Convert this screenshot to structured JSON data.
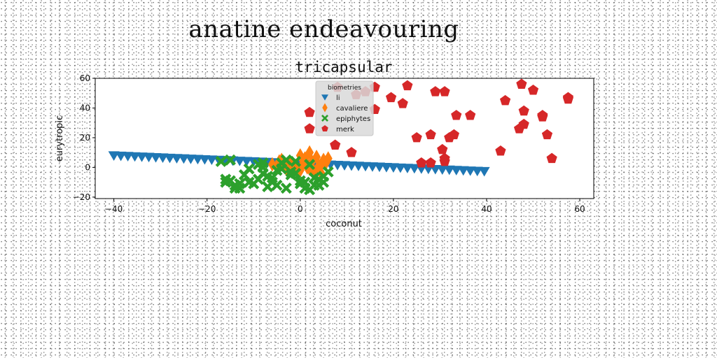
{
  "figure": {
    "suptitle": "anatine endeavouring"
  },
  "chart_data": {
    "type": "scatter",
    "title": "tricapsular",
    "xlabel": "coconut",
    "ylabel": "eurytropic",
    "xlim": [
      -44,
      63
    ],
    "ylim": [
      -21,
      60
    ],
    "xticks": [
      -40,
      -20,
      0,
      20,
      40,
      60
    ],
    "yticks": [
      -20,
      0,
      20,
      40,
      60
    ],
    "xtick_labels": [
      "−40",
      "−20",
      "0",
      "20",
      "40",
      "60"
    ],
    "ytick_labels": [
      "−20",
      "0",
      "20",
      "40",
      "60"
    ],
    "grid": false,
    "legend": {
      "title": "biometries",
      "placement": "top-center"
    },
    "series": [
      {
        "name": "li",
        "marker": "triangle-down",
        "color": "#1f77b4",
        "x": [
          -40,
          -38.5,
          -37,
          -35.5,
          -34,
          -32.5,
          -31,
          -29.5,
          -28,
          -26.5,
          -25,
          -23.5,
          -22,
          -20.5,
          -19,
          -17.5,
          -16,
          -14.5,
          -13,
          -11.5,
          -10,
          -8.5,
          -7,
          -5.5,
          -4,
          -2.5,
          -1,
          0.5,
          2,
          3.5,
          5,
          6.5,
          8,
          9.5,
          11,
          12.5,
          14,
          15.5,
          17,
          18.5,
          20,
          21.5,
          23,
          24.5,
          26,
          27.5,
          29,
          30.5,
          32,
          33.5,
          35,
          36.5,
          38,
          39.5
        ],
        "y": [
          8,
          7.8,
          7.6,
          7.4,
          7.2,
          7,
          6.8,
          6.6,
          6.4,
          6.2,
          6,
          5.8,
          5.6,
          5.4,
          5.2,
          5,
          4.8,
          4.6,
          4.4,
          4.2,
          4,
          3.8,
          3.6,
          3.4,
          3.2,
          3,
          2.8,
          2.6,
          2.4,
          2.2,
          2,
          1.8,
          1.6,
          1.4,
          1.2,
          1,
          0.8,
          0.6,
          0.4,
          0.2,
          0,
          -0.2,
          -0.4,
          -0.6,
          -0.8,
          -1,
          -1.2,
          -1.4,
          -1.6,
          -1.8,
          -2,
          -2.2,
          -2.4,
          -2.6
        ]
      },
      {
        "name": "cavaliere",
        "marker": "diamond",
        "color": "#ff7f0e",
        "x": [
          -6,
          -5,
          -4,
          -3,
          -2,
          -1,
          0,
          0.5,
          1,
          1.5,
          2,
          2.5,
          3,
          3.5,
          4,
          4.5,
          5,
          5.5,
          6,
          -4.5,
          -1.5,
          0,
          2,
          4.5,
          1
        ],
        "y": [
          2,
          0,
          5,
          -1,
          3,
          1,
          -2,
          2,
          6,
          0,
          10,
          4,
          -3,
          7,
          1,
          -4,
          5,
          3,
          6,
          4,
          -2,
          8,
          -1,
          2,
          3
        ]
      },
      {
        "name": "epiphytes",
        "marker": "x",
        "color": "#2ca02c",
        "x": [
          -17,
          -16,
          -15,
          -14,
          -13,
          -12,
          -11,
          -10,
          -9,
          -8,
          -7,
          -6,
          -5,
          -4,
          -3,
          -2,
          -1,
          0,
          1,
          2,
          3,
          4,
          5,
          6,
          -16,
          -14,
          -9,
          -7,
          -5,
          -3,
          -1,
          1,
          3,
          5,
          -15,
          -13,
          -11,
          -8,
          -6,
          -4,
          0,
          2,
          4,
          -2,
          -8
        ],
        "y": [
          4,
          -8,
          5,
          -12,
          -14,
          -5,
          -10,
          -11,
          2,
          3,
          -13,
          -10,
          -12,
          -1,
          5,
          -3,
          4,
          -11,
          -14,
          2,
          -7,
          -12,
          -10,
          -3,
          -10,
          -14,
          -8,
          -6,
          -2,
          -14,
          -4,
          -10,
          -12,
          -6,
          -9,
          -11,
          -1,
          -4,
          -7,
          3,
          -9,
          -15,
          -8,
          -5,
          0
        ]
      },
      {
        "name": "merk",
        "marker": "pentagon",
        "color": "#d62728",
        "x": [
          2,
          2,
          7.5,
          11,
          14,
          16,
          16,
          19.5,
          23,
          25,
          26,
          28,
          28,
          30.5,
          31,
          31,
          32,
          33,
          33.5,
          36.5,
          43,
          44,
          47,
          47.5,
          48,
          48,
          50,
          52,
          52,
          53,
          54,
          57.5,
          57.5,
          8,
          12,
          22,
          29,
          31
        ],
        "y": [
          37,
          26,
          15,
          10,
          51,
          54,
          39,
          47,
          55,
          20,
          3,
          3,
          22,
          12,
          51,
          4,
          20,
          22,
          35,
          35,
          11,
          45,
          26,
          56,
          29,
          38,
          52,
          35,
          34,
          22,
          6,
          47,
          46,
          54,
          49,
          43,
          51,
          6
        ]
      }
    ]
  }
}
